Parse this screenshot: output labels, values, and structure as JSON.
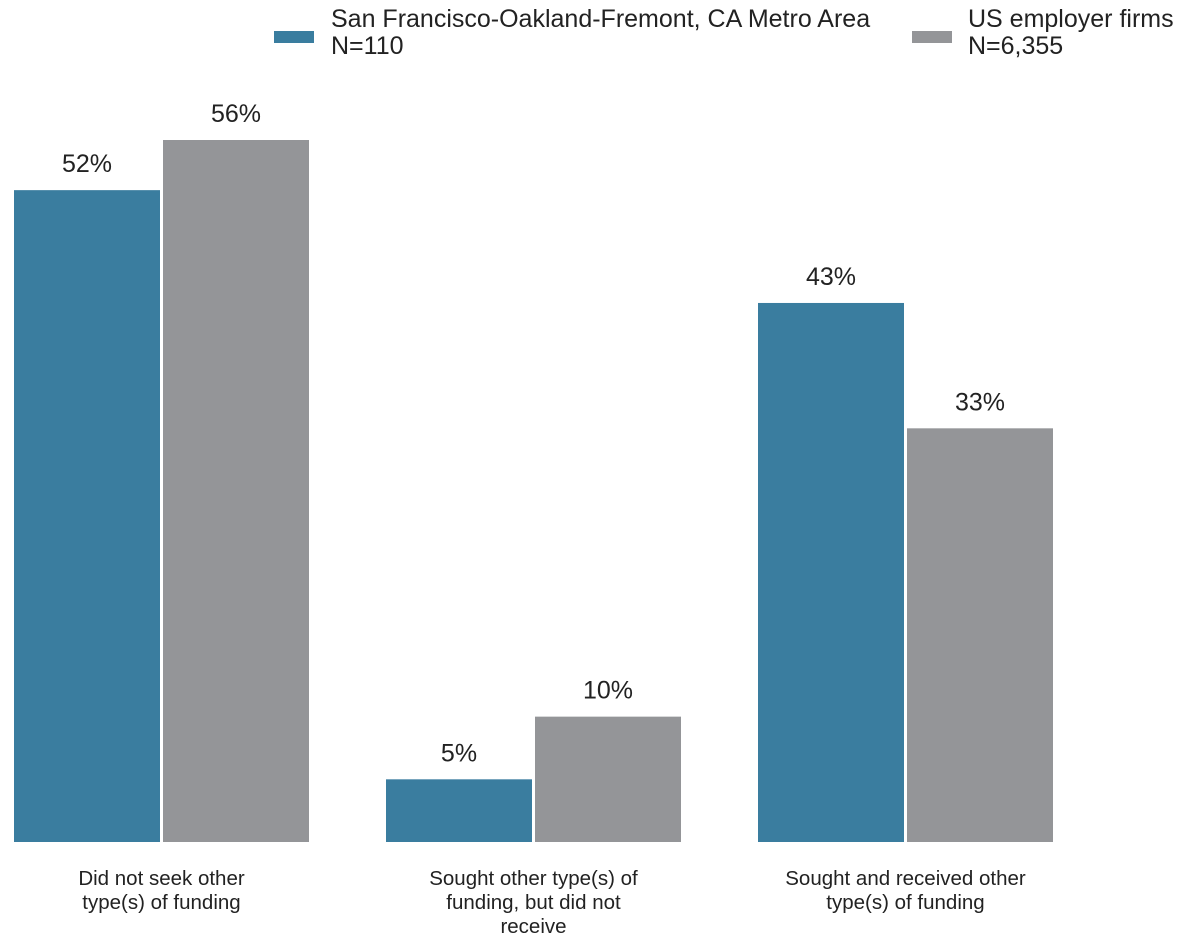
{
  "chart_data": {
    "type": "bar",
    "categories": [
      [
        "Did not seek other",
        "type(s) of funding"
      ],
      [
        "Sought other type(s) of",
        "funding, but did not",
        "receive"
      ],
      [
        "Sought and received other",
        "type(s) of funding"
      ]
    ],
    "series": [
      {
        "name": [
          "San Francisco-Oakland-Fremont, CA Metro Area",
          "N=110"
        ],
        "color": "#3a7d9f",
        "values": [
          52,
          5,
          43
        ],
        "labels": [
          "52%",
          "5%",
          "43%"
        ]
      },
      {
        "name": [
          "US employer firms",
          "N=6,355"
        ],
        "color": "#949598",
        "values": [
          56,
          10,
          33
        ],
        "labels": [
          "56%",
          "10%",
          "33%"
        ]
      }
    ],
    "ylim": [
      0,
      56
    ],
    "grid": false,
    "legend_position": "top",
    "title": "",
    "xlabel": "",
    "ylabel": ""
  }
}
